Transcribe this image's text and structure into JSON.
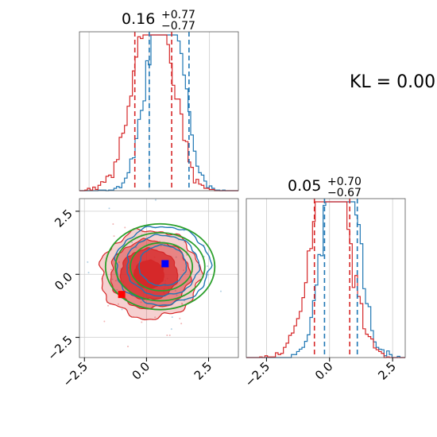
{
  "chart_data": {
    "type": "corner",
    "colors": {
      "blue": "#1f77b4",
      "red": "#d62728",
      "green": "#2ca02c",
      "marker_blue": "#0000ff",
      "marker_red": "#ff0000"
    },
    "annotation": "KL = 0.00",
    "grid": true,
    "panels": [
      {
        "position": "top-left",
        "type": "histogram",
        "title_main": "0.16",
        "title_sup": "+0.77",
        "title_sub": "−0.77",
        "xlim": [
          -2.9,
          3.7
        ],
        "quantiles_red": [
          -0.6,
          0.93
        ],
        "quantiles_blue": [
          0.0,
          1.65
        ],
        "series": [
          {
            "name": "",
            "color": "blue",
            "mean": 0.65,
            "sd": 0.66
          },
          {
            "name": "",
            "color": "red",
            "mean": 0.16,
            "sd": 0.77
          }
        ]
      },
      {
        "position": "bottom-left",
        "type": "contour",
        "xlim": [
          -2.7,
          3.7
        ],
        "ylim": [
          -3.3,
          3.0
        ],
        "xticks": [
          "−2.5",
          "0.0",
          "2.5"
        ],
        "yticks": [
          "−2.5",
          "0.0",
          "2.5"
        ],
        "markers": [
          {
            "color": "marker_blue",
            "x": 0.75,
            "y": 0.42
          },
          {
            "color": "marker_red",
            "x": -1.0,
            "y": -0.8
          }
        ]
      },
      {
        "position": "bottom-right",
        "type": "histogram",
        "title_main": "0.05",
        "title_sup": "+0.70",
        "title_sub": "−0.67",
        "xlim": [
          -3.3,
          3.0
        ],
        "xticks": [
          "−2.5",
          "0.0",
          "2.5"
        ],
        "quantiles_red": [
          -0.6,
          0.8
        ],
        "quantiles_blue": [
          -0.2,
          1.1
        ],
        "series": [
          {
            "name": "",
            "color": "blue",
            "mean": 0.45,
            "sd": 0.6
          },
          {
            "name": "",
            "color": "red",
            "mean": 0.05,
            "sd": 0.7
          }
        ]
      }
    ]
  }
}
